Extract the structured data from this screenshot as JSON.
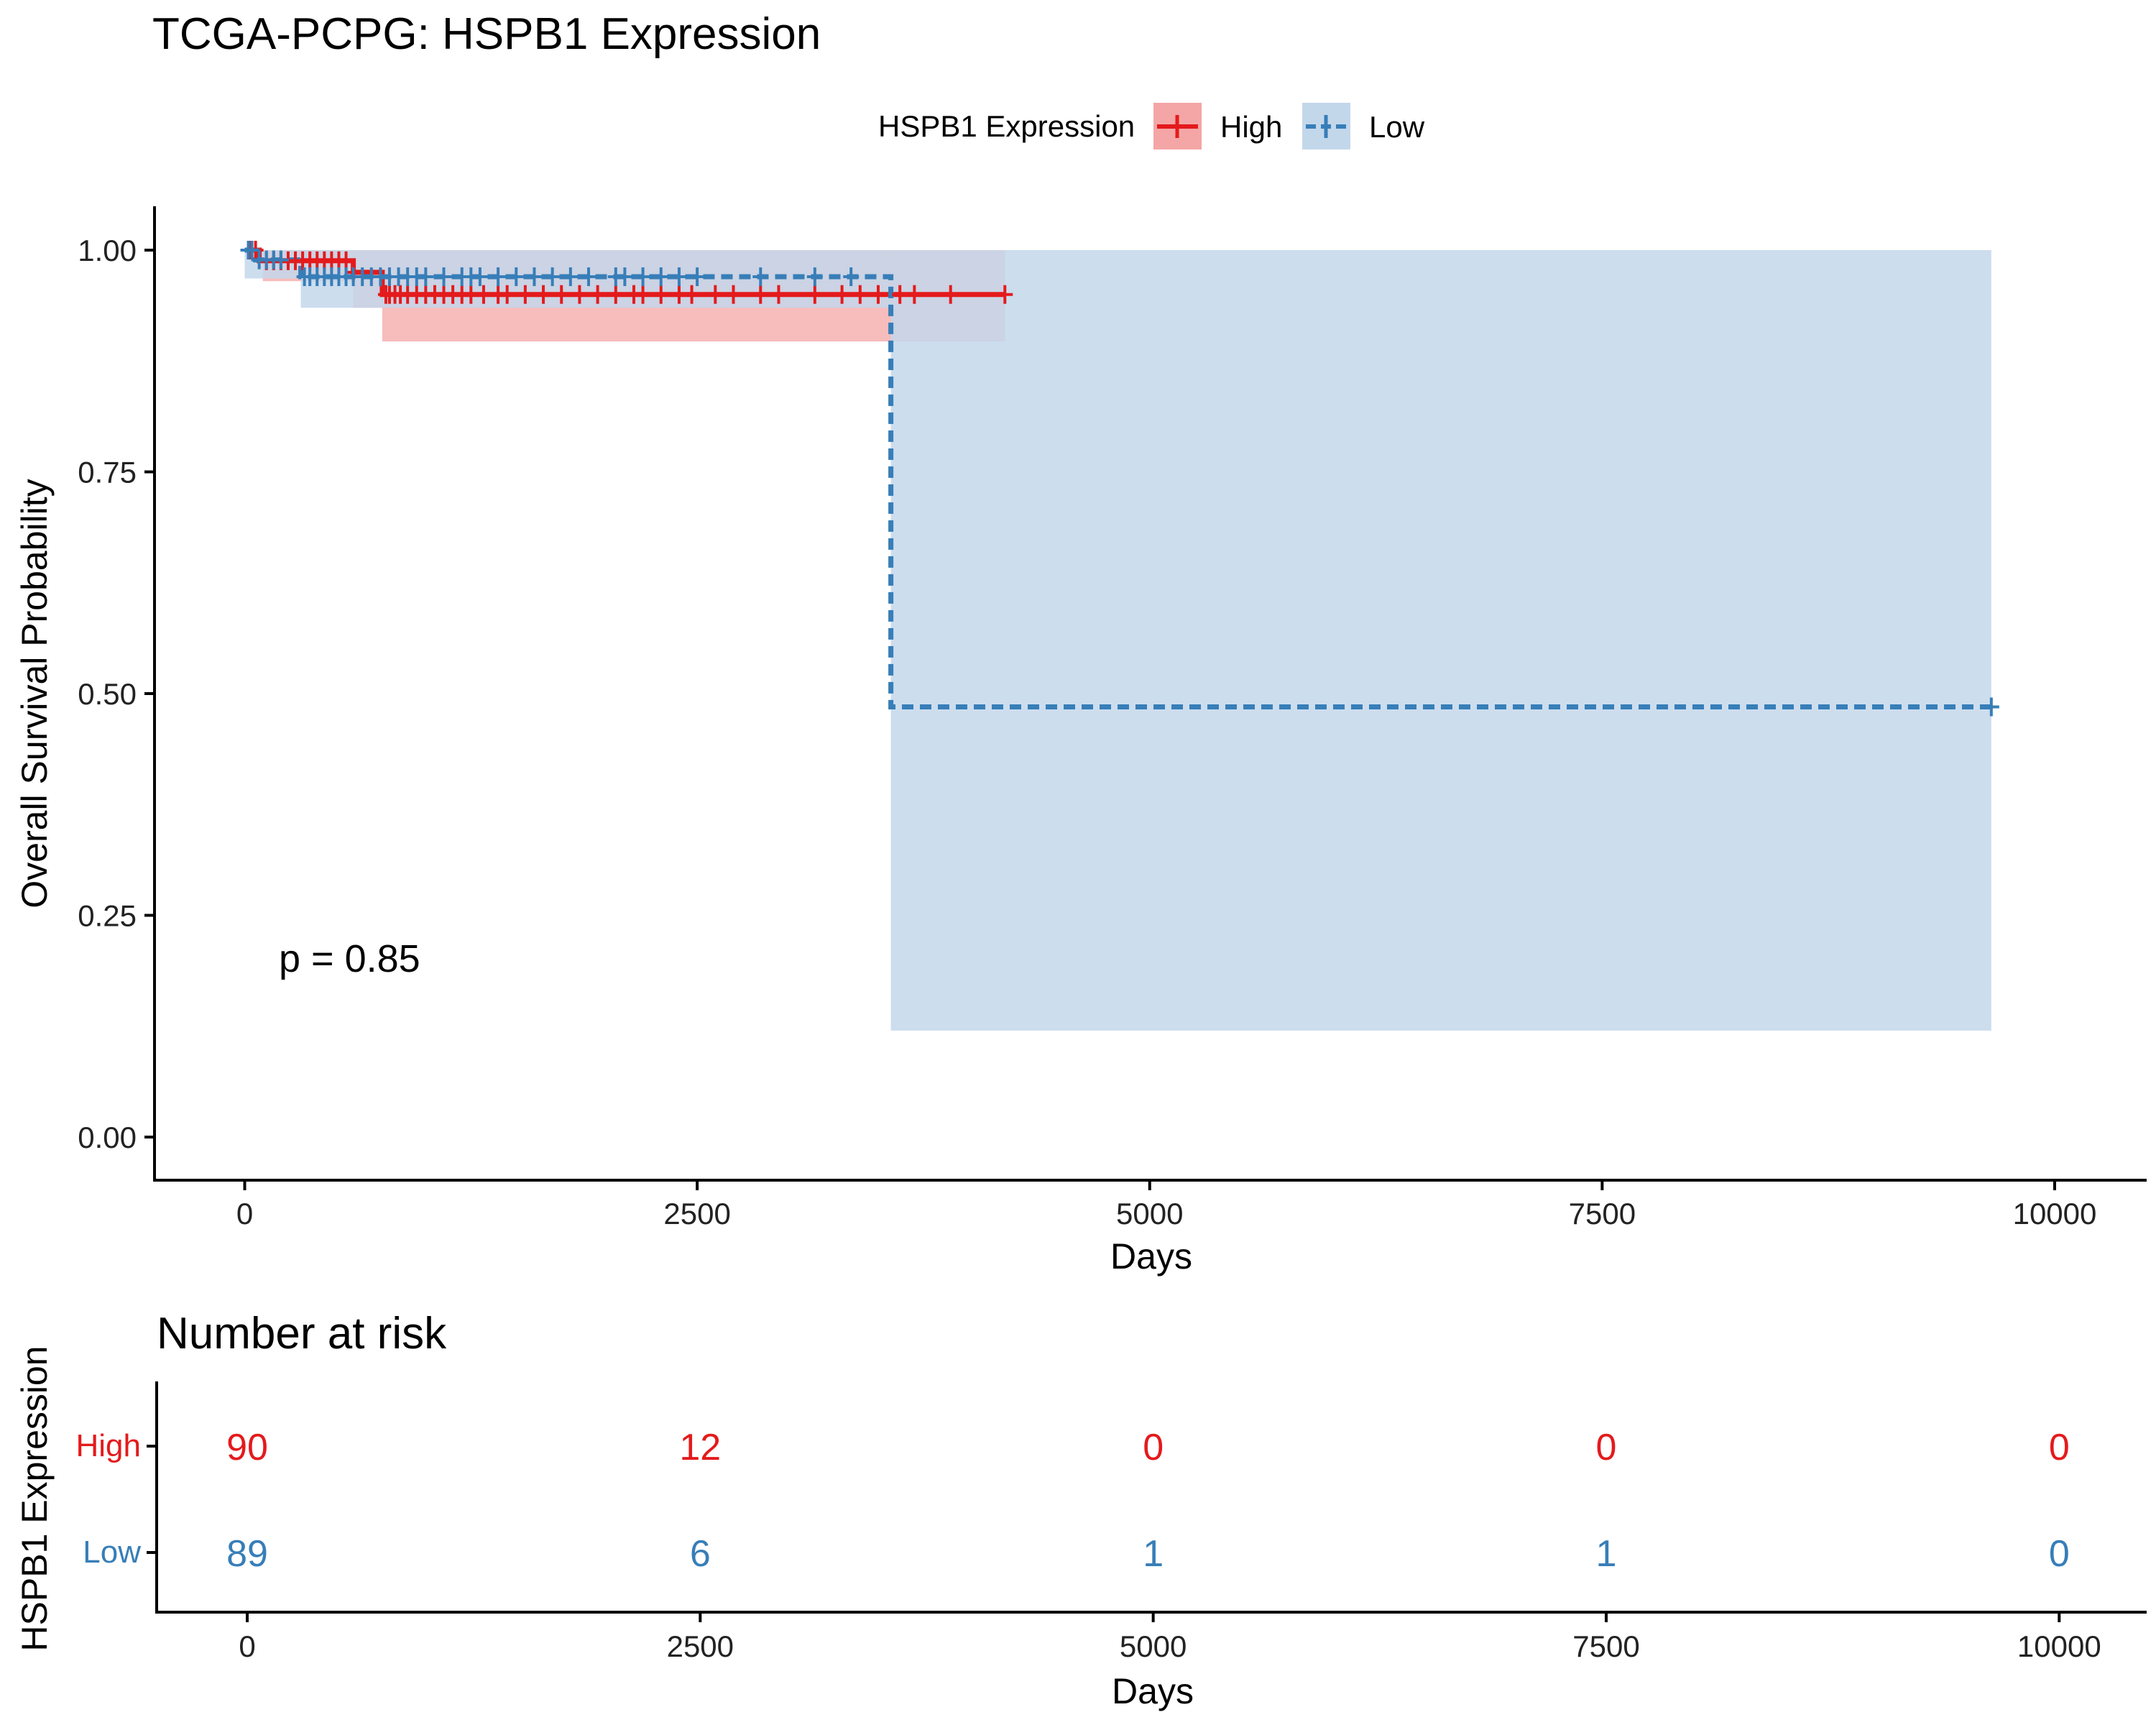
{
  "chart_data": [
    {
      "type": "line",
      "subtype": "kaplan-meier",
      "title": "TCGA-PCPG: HSPB1 Expression",
      "xlabel": "Days",
      "ylabel": "Overall Survival Probability",
      "xlim": [
        -500,
        10500
      ],
      "ylim": [
        -0.05,
        1.05
      ],
      "x_ticks": [
        0,
        2500,
        5000,
        7500,
        10000
      ],
      "y_ticks": [
        0.0,
        0.25,
        0.5,
        0.75,
        1.0
      ],
      "y_tick_labels": [
        "0.00",
        "0.25",
        "0.50",
        "0.75",
        "1.00"
      ],
      "grid": false,
      "legend": {
        "title": "HSPB1 Expression",
        "position": "top"
      },
      "annotation": "p = 0.85",
      "series": [
        {
          "name": "High",
          "color": "#e41a1c",
          "fill": "#f4a6a6",
          "line_style": "solid",
          "steps": [
            [
              0,
              1.0
            ],
            [
              80,
              0.988
            ],
            [
              600,
              0.975
            ],
            [
              760,
              0.95
            ],
            [
              4200,
              0.95
            ]
          ],
          "ci": [
            {
              "x0": 0,
              "x1": 100,
              "lo": 1.0,
              "hi": 1.0
            },
            {
              "x0": 100,
              "x1": 600,
              "lo": 0.965,
              "hi": 1.0
            },
            {
              "x0": 600,
              "x1": 760,
              "lo": 0.935,
              "hi": 1.0
            },
            {
              "x0": 760,
              "x1": 4200,
              "lo": 0.897,
              "hi": 1.0
            }
          ],
          "censor_x": [
            30,
            60,
            120,
            160,
            200,
            240,
            280,
            320,
            360,
            400,
            440,
            480,
            520,
            560,
            600,
            780,
            800,
            830,
            860,
            900,
            950,
            1000,
            1050,
            1100,
            1150,
            1200,
            1250,
            1320,
            1400,
            1450,
            1550,
            1650,
            1750,
            1850,
            1950,
            2050,
            2150,
            2200,
            2300,
            2400,
            2470,
            2600,
            2700,
            2850,
            2950,
            3150,
            3300,
            3400,
            3500,
            3620,
            3700,
            3900,
            4200
          ]
        },
        {
          "name": "Low",
          "color": "#377eb8",
          "fill": "#c3d7eb",
          "line_style": "dashed",
          "steps": [
            [
              0,
              1.0
            ],
            [
              60,
              0.989
            ],
            [
              310,
              0.97
            ],
            [
              3570,
              0.485
            ],
            [
              9650,
              0.485
            ]
          ],
          "ci": [
            {
              "x0": 0,
              "x1": 310,
              "lo": 0.968,
              "hi": 1.0
            },
            {
              "x0": 310,
              "x1": 600,
              "lo": 0.935,
              "hi": 1.0
            },
            {
              "x0": 600,
              "x1": 3570,
              "lo": 0.935,
              "hi": 1.0
            },
            {
              "x0": 3570,
              "x1": 9650,
              "lo": 0.12,
              "hi": 1.0
            }
          ],
          "censor_x": [
            20,
            40,
            80,
            120,
            160,
            200,
            330,
            360,
            400,
            440,
            480,
            520,
            560,
            600,
            650,
            700,
            750,
            800,
            850,
            900,
            950,
            1000,
            1100,
            1200,
            1250,
            1300,
            1400,
            1500,
            1600,
            1700,
            1800,
            1900,
            2050,
            2100,
            2200,
            2300,
            2400,
            2500,
            2850,
            3150,
            3350,
            9650
          ]
        }
      ]
    },
    {
      "type": "table",
      "title": "Number at risk",
      "xlabel": "Days",
      "ylabel": "HSPB1 Expression",
      "x_ticks": [
        0,
        2500,
        5000,
        7500,
        10000
      ],
      "rows": [
        {
          "name": "High",
          "color": "#e41a1c",
          "values": [
            90,
            12,
            0,
            0,
            0
          ]
        },
        {
          "name": "Low",
          "color": "#377eb8",
          "values": [
            89,
            6,
            1,
            1,
            0
          ]
        }
      ]
    }
  ]
}
